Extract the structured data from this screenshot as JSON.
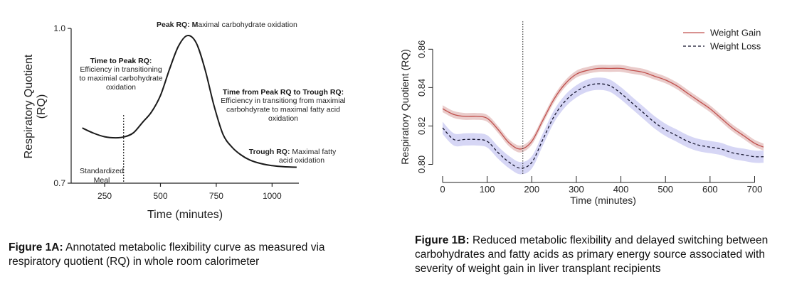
{
  "figure_a": {
    "chart_data": {
      "type": "line",
      "title": "",
      "xlabel": "Time (minutes)",
      "ylabel_line1": "Respiratory Quotient",
      "ylabel_line2": "(RQ)",
      "xlim": [
        100,
        1120
      ],
      "ylim": [
        0.7,
        1.0
      ],
      "x_ticks": [
        250,
        500,
        750,
        1000
      ],
      "y_ticks": [
        0.7,
        1.0
      ],
      "y_tick_labels": [
        "0.7",
        "1.0"
      ],
      "series": [
        {
          "x": [
            150,
            200,
            250,
            300,
            340,
            380,
            420,
            460,
            500,
            540,
            580,
            620,
            660,
            700,
            740,
            780,
            820,
            860,
            900,
            950,
            1000,
            1050,
            1110
          ],
          "y": [
            0.807,
            0.797,
            0.79,
            0.788,
            0.79,
            0.798,
            0.818,
            0.838,
            0.87,
            0.92,
            0.965,
            0.986,
            0.972,
            0.92,
            0.85,
            0.795,
            0.77,
            0.755,
            0.745,
            0.738,
            0.734,
            0.732,
            0.731
          ],
          "color": "#1a1a1a"
        }
      ],
      "meal_line_x": 335
    },
    "annotations": {
      "meal": [
        "Standardized",
        "Meal"
      ],
      "time_to_peak_title": "Time to Peak RQ:",
      "time_to_peak_body": [
        "Efficiency in transitioning",
        "to maximial carbohydrate",
        "oxidation"
      ],
      "peak_bold": "Peak RQ: M",
      "peak_rest": "aximal carbohydrate oxidation",
      "peak_to_trough_title": "Time from Peak RQ to Trough RQ:",
      "peak_to_trough_body": [
        "Efficiency in transitiong from maximial",
        "carbohdyrate  to maximal fatty acid",
        "oxidation"
      ],
      "trough_bold": "Trough RQ:",
      "trough_rest": " Maximal fatty",
      "trough_line2": "acid oxidation"
    },
    "caption_bold": "Figure 1A:",
    "caption_text": " Annotated metabolic flexibility curve as measured via respiratory quotient (RQ) in whole room calorimeter"
  },
  "figure_b": {
    "chart_data": {
      "type": "line",
      "title": "",
      "xlabel": "Time (minutes)",
      "ylabel": "Respiratory Quotient (RQ)",
      "xlim": [
        0,
        720
      ],
      "ylim": [
        0.795,
        0.869
      ],
      "x_ticks": [
        0,
        100,
        200,
        300,
        400,
        500,
        600,
        700
      ],
      "y_ticks": [
        0.8,
        0.82,
        0.84,
        0.86
      ],
      "y_tick_labels": [
        "0.80",
        "0.82",
        "0.84",
        "0.86"
      ],
      "legend_position": "top-right",
      "vline_x": 180,
      "series": [
        {
          "name": "Weight Gain",
          "color": "#c0504d",
          "band_color": "#d9a3a0",
          "style": "solid",
          "band": 0.0018,
          "x": [
            0,
            25,
            50,
            75,
            100,
            125,
            150,
            175,
            200,
            225,
            250,
            275,
            300,
            325,
            350,
            375,
            400,
            425,
            450,
            475,
            500,
            525,
            550,
            575,
            600,
            625,
            650,
            675,
            700,
            720
          ],
          "y": [
            0.829,
            0.826,
            0.825,
            0.825,
            0.824,
            0.818,
            0.811,
            0.808,
            0.812,
            0.823,
            0.834,
            0.842,
            0.847,
            0.849,
            0.85,
            0.85,
            0.85,
            0.849,
            0.848,
            0.846,
            0.844,
            0.841,
            0.837,
            0.833,
            0.829,
            0.824,
            0.819,
            0.815,
            0.811,
            0.809
          ]
        },
        {
          "name": "Weight Loss",
          "color": "#14142e",
          "band_color": "#b4b5ec",
          "style": "dashed",
          "band": 0.0032,
          "x": [
            0,
            25,
            50,
            75,
            100,
            125,
            150,
            175,
            200,
            225,
            250,
            275,
            300,
            325,
            350,
            375,
            400,
            425,
            450,
            475,
            500,
            525,
            550,
            575,
            600,
            625,
            650,
            675,
            700,
            720
          ],
          "y": [
            0.819,
            0.813,
            0.813,
            0.813,
            0.812,
            0.806,
            0.801,
            0.798,
            0.801,
            0.813,
            0.825,
            0.833,
            0.838,
            0.841,
            0.842,
            0.841,
            0.837,
            0.832,
            0.827,
            0.822,
            0.818,
            0.815,
            0.812,
            0.81,
            0.809,
            0.808,
            0.806,
            0.805,
            0.804,
            0.804
          ]
        }
      ]
    },
    "caption_bold": "Figure 1B:",
    "caption_text": " Reduced metabolic flexibility and delayed switching between carbohydrates and fatty acids as primary energy source associated with severity of weight gain in liver transplant recipients"
  }
}
